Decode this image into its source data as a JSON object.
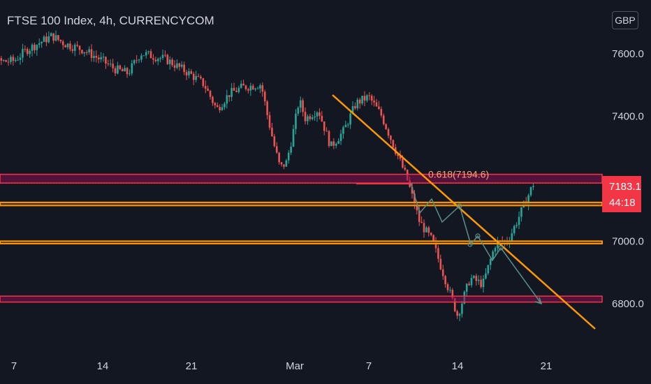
{
  "header": {
    "title": "FTSE 100 Index, 4h, CURRENCYCOM",
    "currency_button": "GBP"
  },
  "price_tag": {
    "last_price": "7183.1",
    "countdown": "44:18"
  },
  "colors": {
    "background": "#131722",
    "up": "#26a69a",
    "down": "#ef5350",
    "trendline": "#ff9800",
    "zone_fill": "#880e4f",
    "zone_border": "#f23645",
    "support_line": "#ff9800",
    "projection": "#5b8f8a"
  },
  "chart_data": {
    "type": "candlestick",
    "title": "FTSE 100 Index, 4h, CURRENCYCOM",
    "currency": "GBP",
    "x_axis": {
      "ticks": [
        {
          "label": "7",
          "date": "2022-02-07"
        },
        {
          "label": "14",
          "date": "2022-02-14"
        },
        {
          "label": "21",
          "date": "2022-02-21"
        },
        {
          "label": "Mar",
          "date": "2022-03-01"
        },
        {
          "label": "7",
          "date": "2022-03-07"
        },
        {
          "label": "14",
          "date": "2022-03-14"
        },
        {
          "label": "21",
          "date": "2022-03-21"
        }
      ]
    },
    "y_axis": {
      "range": [
        6710,
        7720
      ],
      "ticks": [
        {
          "label": "7600.0",
          "value": 7600
        },
        {
          "label": "7400.0",
          "value": 7400
        },
        {
          "label": "7000.0",
          "value": 7000
        },
        {
          "label": "6800.0",
          "value": 6800
        }
      ]
    },
    "last_price": 7183.1,
    "fib_label": {
      "text": "0.618(7194.6)",
      "value": 7194.6
    },
    "zones": [
      {
        "top": 7212,
        "bottom": 7184
      },
      {
        "top": 6822,
        "bottom": 6803
      }
    ],
    "support_lines": [
      {
        "top": 7122,
        "bottom": 7112
      },
      {
        "top": 6998,
        "bottom": 6990
      }
    ],
    "trendline": [
      {
        "date": "2022-03-03",
        "price": 7475
      },
      {
        "date": "2022-03-26",
        "price": 6722
      }
    ],
    "projection_path": [
      {
        "date": "2022-03-10",
        "price": 7190
      },
      {
        "date": "2022-03-10.7",
        "price": 7102
      },
      {
        "date": "2022-03-11.6",
        "price": 7150
      },
      {
        "date": "2022-03-12.9",
        "price": 7046
      },
      {
        "date": "2022-03-14.6",
        "price": 7120
      },
      {
        "date": "2022-03-15.9",
        "price": 7000
      },
      {
        "date": "2022-03-16.5",
        "price": 7030
      },
      {
        "date": "2022-03-17.7",
        "price": 6965
      },
      {
        "date": "2022-03-18.5",
        "price": 7000
      },
      {
        "date": "2022-03-21.3",
        "price": 6808
      }
    ],
    "candles_anchor_path": [
      [
        "2022-02-03.0",
        7550
      ],
      [
        "2022-02-05.0",
        7570
      ],
      [
        "2022-02-07.0",
        7575
      ],
      [
        "2022-02-08.0",
        7610
      ],
      [
        "2022-02-10.0",
        7655
      ],
      [
        "2022-02-11.0",
        7630
      ],
      [
        "2022-02-12.5",
        7610
      ],
      [
        "2022-02-14.0",
        7575
      ],
      [
        "2022-02-15.0",
        7548
      ],
      [
        "2022-02-16.0",
        7535
      ],
      [
        "2022-02-17.0",
        7600
      ],
      [
        "2022-02-18.0",
        7590
      ],
      [
        "2022-02-19.0",
        7580
      ],
      [
        "2022-02-20.0",
        7555
      ],
      [
        "2022-02-21.0",
        7530
      ],
      [
        "2022-02-22.0",
        7500
      ],
      [
        "2022-02-23.0",
        7420
      ],
      [
        "2022-02-24.0",
        7470
      ],
      [
        "2022-02-25.0",
        7490
      ],
      [
        "2022-02-26.5",
        7500
      ],
      [
        "2022-02-27.0",
        7400
      ],
      [
        "2022-02-27.5",
        7310
      ],
      [
        "2022-02-28.0",
        7232
      ],
      [
        "2022-02-28.5",
        7250
      ],
      [
        "2022-03-01.0",
        7340
      ],
      [
        "2022-03-01.5",
        7450
      ],
      [
        "2022-03-02.0",
        7390
      ],
      [
        "2022-03-03.0",
        7420
      ],
      [
        "2022-03-04.0",
        7300
      ],
      [
        "2022-03-05.0",
        7350
      ],
      [
        "2022-03-06.0",
        7440
      ],
      [
        "2022-03-07.0",
        7460
      ],
      [
        "2022-03-08.0",
        7400
      ],
      [
        "2022-03-09.0",
        7300
      ],
      [
        "2022-03-10.0",
        7200
      ],
      [
        "2022-03-11.0",
        7060
      ],
      [
        "2022-03-12.0",
        7000
      ],
      [
        "2022-03-13.0",
        6880
      ],
      [
        "2022-03-14.0",
        6760
      ],
      [
        "2022-03-15.0",
        6880
      ],
      [
        "2022-03-16.0",
        6860
      ],
      [
        "2022-03-17.0",
        6990
      ],
      [
        "2022-03-18.0",
        7000
      ],
      [
        "2022-03-19.0",
        7090
      ],
      [
        "2022-03-20.0",
        7183
      ]
    ]
  }
}
